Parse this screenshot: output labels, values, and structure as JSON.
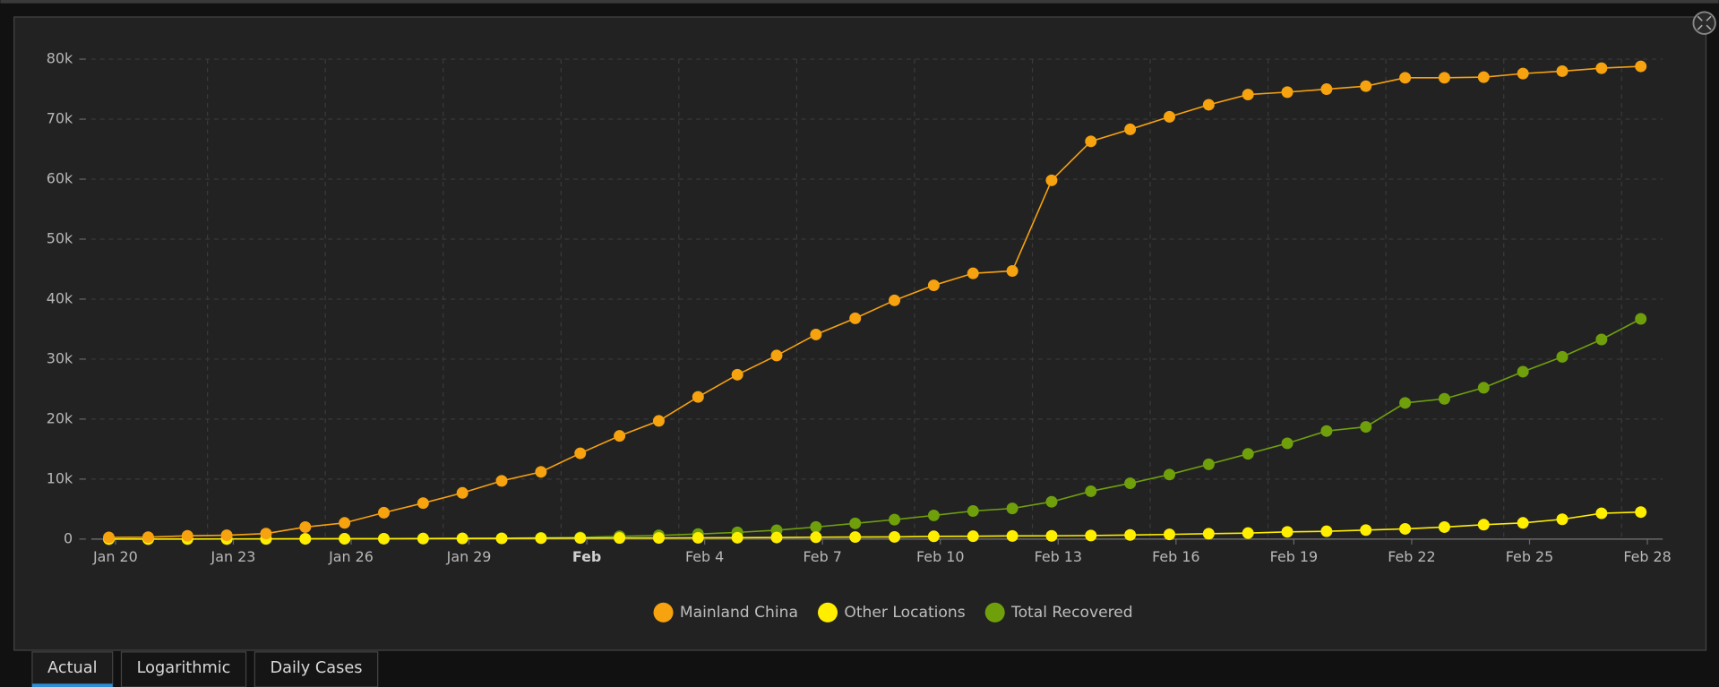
{
  "chart_data": {
    "type": "line",
    "categories": [
      "Jan 20",
      null,
      null,
      "Jan 23",
      null,
      null,
      "Jan 26",
      null,
      null,
      "Jan 29",
      null,
      null,
      "Feb",
      null,
      null,
      "Feb 4",
      null,
      null,
      "Feb 7",
      null,
      null,
      "Feb 10",
      null,
      null,
      "Feb 13",
      null,
      null,
      "Feb 16",
      null,
      null,
      "Feb 19",
      null,
      null,
      "Feb 22",
      null,
      null,
      "Feb 25",
      null,
      null,
      "Feb 28"
    ],
    "series": [
      {
        "name": "Mainland China",
        "color": "#f7a20f",
        "values": [
          278,
          326,
          547,
          639,
          916,
          2000,
          2700,
          4400,
          6000,
          7700,
          9700,
          11200,
          14300,
          17200,
          19700,
          23700,
          27400,
          30600,
          34100,
          36800,
          39800,
          42300,
          44300,
          44700,
          59800,
          66300,
          68300,
          70400,
          72400,
          74100,
          74500,
          75000,
          75500,
          76900,
          76900,
          77000,
          77600,
          78000,
          78500,
          78800
        ]
      },
      {
        "name": "Other Locations",
        "color": "#ffee00",
        "values": [
          4,
          6,
          8,
          14,
          25,
          40,
          57,
          64,
          87,
          105,
          118,
          153,
          173,
          183,
          188,
          212,
          227,
          265,
          317,
          343,
          361,
          457,
          476,
          523,
          538,
          595,
          685,
          780,
          896,
          999,
          1200,
          1300,
          1500,
          1700,
          2000,
          2400,
          2700,
          3300,
          4300,
          4500
        ]
      },
      {
        "name": "Total Recovered",
        "color": "#6fa00c",
        "values": [
          0,
          0,
          28,
          30,
          36,
          39,
          49,
          58,
          101,
          120,
          135,
          214,
          275,
          463,
          614,
          843,
          1115,
          1477,
          2011,
          2616,
          3244,
          3946,
          4683,
          5113,
          6217,
          7977,
          9298,
          10755,
          12462,
          14206,
          15962,
          18014,
          18704,
          22699,
          23383,
          25227,
          27905,
          30384,
          33277,
          36711
        ]
      }
    ],
    "ylim": [
      0,
      80000
    ],
    "yticks": [
      0,
      {
        "value": 10000,
        "label": "10k"
      },
      {
        "value": 20000,
        "label": "20k"
      },
      {
        "value": 30000,
        "label": "30k"
      },
      {
        "value": 40000,
        "label": "40k"
      },
      {
        "value": 50000,
        "label": "50k"
      },
      {
        "value": 60000,
        "label": "60k"
      },
      {
        "value": 70000,
        "label": "70k"
      },
      {
        "value": 80000,
        "label": "80k"
      }
    ],
    "grid": true,
    "legend": "bottom"
  },
  "tabs": [
    "Actual",
    "Logarithmic",
    "Daily Cases"
  ]
}
